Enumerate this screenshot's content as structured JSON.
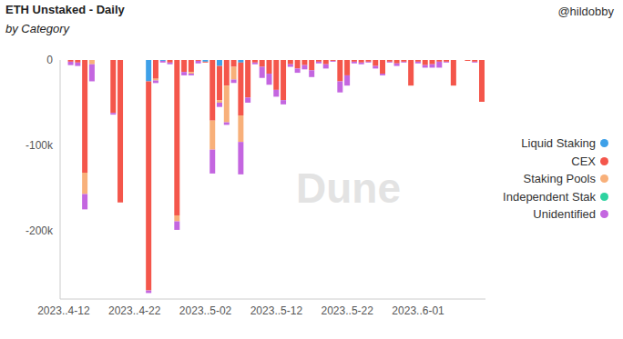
{
  "chart_data": {
    "type": "bar",
    "title": "ETH Unstaked - Daily",
    "subtitle": "by Category",
    "annotations": [
      "@hildobby",
      "Dune"
    ],
    "categories": [
      "2023..4-12",
      null,
      null,
      null,
      null,
      null,
      null,
      null,
      null,
      null,
      "2023..4-22",
      null,
      null,
      null,
      null,
      null,
      null,
      null,
      null,
      null,
      "2023..5-02",
      null,
      null,
      null,
      null,
      null,
      null,
      null,
      null,
      null,
      "2023..5-12",
      null,
      null,
      null,
      null,
      null,
      null,
      null,
      null,
      null,
      "2023..5-22",
      null,
      null,
      null,
      null,
      null,
      null,
      null,
      null,
      null,
      "2023..6-01",
      null,
      null,
      null,
      null,
      null,
      null,
      null,
      null,
      null
    ],
    "series": [
      {
        "name": "Liquid Staking",
        "color": "#3ea0e8",
        "values": [
          0,
          0,
          0,
          0,
          0,
          0,
          0,
          0,
          0,
          0,
          0,
          0,
          -25000,
          0,
          -1000,
          0,
          0,
          0,
          0,
          0,
          -2000,
          0,
          -7000,
          0,
          0,
          -3000,
          0,
          0,
          0,
          0,
          0,
          0,
          0,
          0,
          0,
          0,
          0,
          0,
          0,
          0,
          0,
          0,
          0,
          0,
          0,
          0,
          0,
          0,
          0,
          0,
          0,
          0,
          0,
          0,
          0,
          0,
          0,
          0,
          0,
          0
        ]
      },
      {
        "name": "CEX",
        "color": "#f4564b",
        "values": [
          0,
          -2000,
          -3000,
          -132000,
          0,
          0,
          0,
          -62000,
          -167000,
          0,
          0,
          0,
          -245000,
          -22000,
          0,
          -3000,
          -182000,
          -14000,
          -14000,
          -1000,
          -1000,
          -71000,
          -40000,
          -30000,
          -8000,
          -62000,
          -44000,
          -3000,
          -8000,
          -16000,
          -35000,
          -47000,
          -5000,
          -10000,
          -6000,
          -12000,
          -2000,
          -5000,
          -1000,
          -25000,
          -18000,
          -2000,
          -3000,
          -2000,
          -7000,
          -16000,
          -2000,
          -4000,
          -2000,
          -30000,
          -2000,
          -6000,
          -5000,
          -2000,
          -2000,
          -30000,
          0,
          -1000,
          -2000,
          -49000
        ]
      },
      {
        "name": "Staking Pools",
        "color": "#f8b07a",
        "values": [
          0,
          0,
          0,
          -25000,
          -5000,
          0,
          0,
          0,
          0,
          0,
          0,
          0,
          0,
          -2000,
          0,
          0,
          -7000,
          0,
          -2000,
          0,
          0,
          -34000,
          -3000,
          -43000,
          -15000,
          -31000,
          0,
          0,
          0,
          0,
          0,
          0,
          0,
          0,
          0,
          0,
          0,
          0,
          0,
          0,
          0,
          0,
          0,
          0,
          0,
          0,
          0,
          0,
          0,
          0,
          0,
          0,
          0,
          0,
          0,
          0,
          0,
          0,
          0,
          0
        ]
      },
      {
        "name": "Independent Stak",
        "color": "#2ed3a0",
        "values": [
          0,
          0,
          0,
          0,
          0,
          0,
          0,
          0,
          0,
          0,
          0,
          0,
          0,
          0,
          0,
          0,
          0,
          0,
          0,
          0,
          0,
          0,
          0,
          0,
          0,
          0,
          0,
          0,
          0,
          0,
          0,
          0,
          0,
          0,
          0,
          0,
          0,
          0,
          0,
          0,
          0,
          0,
          0,
          0,
          0,
          0,
          0,
          0,
          0,
          0,
          0,
          0,
          0,
          0,
          0,
          0,
          0,
          0,
          0,
          0
        ]
      },
      {
        "name": "Unidentified",
        "color": "#c466e0",
        "values": [
          0,
          -4000,
          -4000,
          -18000,
          -20000,
          0,
          0,
          -2000,
          0,
          0,
          0,
          0,
          -3000,
          -3000,
          -2000,
          -2000,
          -10000,
          -4000,
          -2000,
          -3000,
          0,
          -28000,
          -5000,
          -3000,
          -4000,
          -38000,
          -6000,
          -2000,
          -13000,
          -13000,
          -8000,
          -5000,
          -3000,
          -5000,
          -5000,
          -8000,
          -2000,
          -5000,
          -1000,
          -13000,
          -12000,
          -2000,
          -2000,
          -1000,
          -3000,
          -2000,
          -1000,
          -3000,
          -1000,
          0,
          -2000,
          -3000,
          -4000,
          -7000,
          -1000,
          0,
          0,
          0,
          -1000,
          0
        ]
      }
    ],
    "ylim": [
      -280000,
      0
    ],
    "yticks": [
      {
        "value": -200000,
        "label": "-200k"
      },
      {
        "value": -100000,
        "label": "-100k"
      },
      0
    ],
    "stacked": true,
    "grid": false,
    "legend": "right"
  }
}
